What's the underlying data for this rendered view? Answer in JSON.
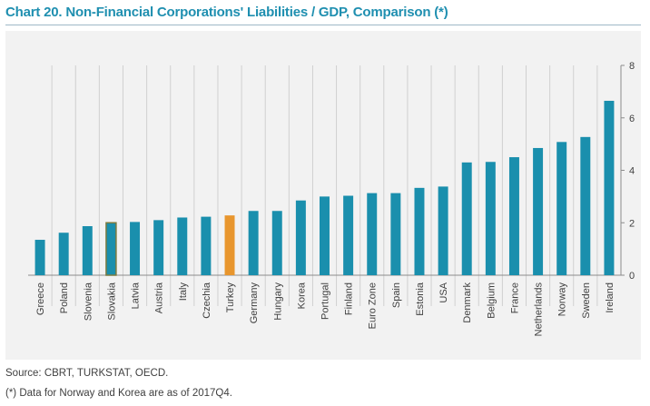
{
  "title": "Chart 20. Non-Financial Corporations' Liabilities / GDP, Comparison (*)",
  "footnotes": {
    "source": "Source: CBRT, TURKSTAT, OECD.",
    "note": "(*) Data for Norway and Korea are as of 2017Q4."
  },
  "colors": {
    "title": "#1f8fb0",
    "bar": "#1a8fad",
    "highlight_bar": "#e8962e",
    "highlight_border": "#7a7a40",
    "background": "#f2f2f2",
    "grid": "#d0d0d0"
  },
  "chart_data": {
    "type": "bar",
    "categories": [
      "Greece",
      "Poland",
      "Slovenia",
      "Slovakia",
      "Latvia",
      "Austria",
      "Italy",
      "Czechia",
      "Turkey",
      "Germany",
      "Hungary",
      "Korea",
      "Portugal",
      "Finland",
      "Euro Zone",
      "Spain",
      "Estonia",
      "USA",
      "Denmark",
      "Belgium",
      "France",
      "Netherlands",
      "Norway",
      "Sweden",
      "Ireland"
    ],
    "values": [
      1.35,
      1.62,
      1.87,
      2.0,
      2.03,
      2.1,
      2.2,
      2.23,
      2.28,
      2.45,
      2.45,
      2.85,
      3.0,
      3.03,
      3.13,
      3.13,
      3.33,
      3.38,
      4.3,
      4.32,
      4.5,
      4.85,
      5.08,
      5.27,
      6.65
    ],
    "highlight": [
      "Turkey"
    ],
    "outlined": [
      "Slovakia"
    ],
    "ylim": [
      0,
      8
    ],
    "yticks": [
      0,
      2,
      4,
      6,
      8
    ],
    "y_axis_side": "right",
    "grid": false,
    "title": "Chart 20. Non-Financial Corporations' Liabilities / GDP, Comparison (*)",
    "xlabel": "",
    "ylabel": ""
  }
}
